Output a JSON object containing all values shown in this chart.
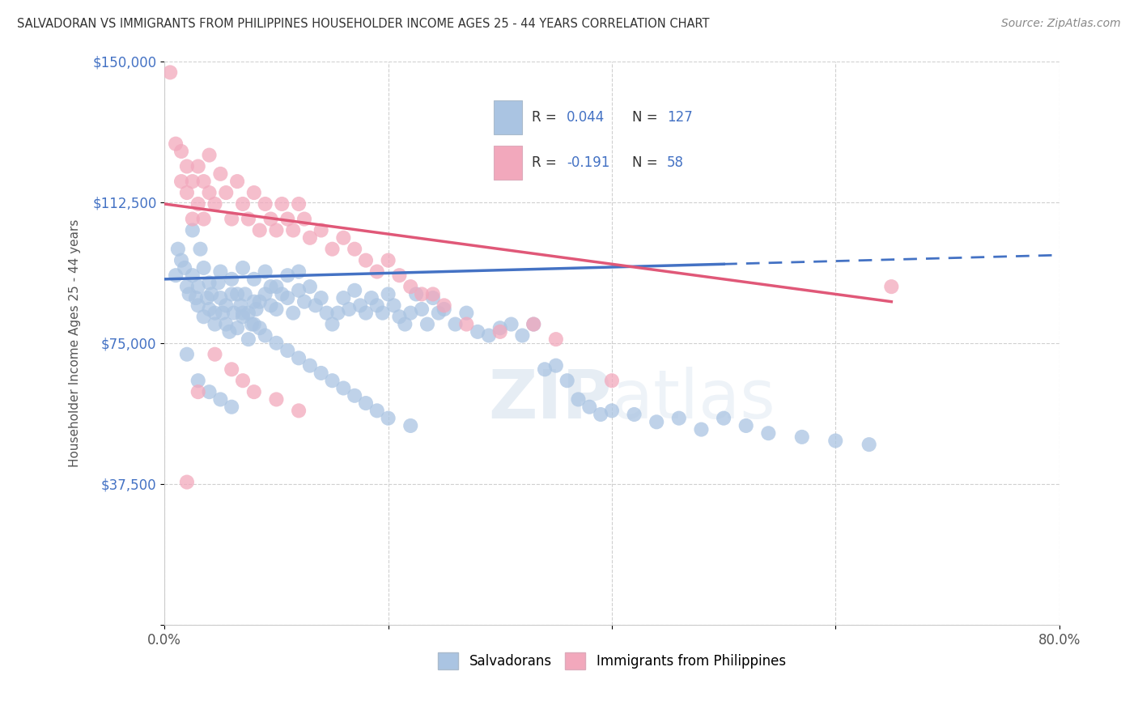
{
  "title": "SALVADORAN VS IMMIGRANTS FROM PHILIPPINES HOUSEHOLDER INCOME AGES 25 - 44 YEARS CORRELATION CHART",
  "source": "Source: ZipAtlas.com",
  "ylabel": "Householder Income Ages 25 - 44 years",
  "y_ticks": [
    0,
    37500,
    75000,
    112500,
    150000
  ],
  "y_tick_labels": [
    "",
    "$37,500",
    "$75,000",
    "$112,500",
    "$150,000"
  ],
  "x_min": 0.0,
  "x_max": 80.0,
  "y_min": 0,
  "y_max": 150000,
  "blue_color": "#aac4e2",
  "pink_color": "#f2a8bc",
  "blue_line_color": "#4472c4",
  "pink_line_color": "#e05878",
  "blue_r": 0.044,
  "blue_n": 127,
  "pink_r": -0.191,
  "pink_n": 58,
  "legend_label_blue": "Salvadorans",
  "legend_label_pink": "Immigrants from Philippines",
  "watermark_part1": "ZIP",
  "watermark_part2": "atlas",
  "blue_scatter_x": [
    1.0,
    1.2,
    1.5,
    1.8,
    2.0,
    2.2,
    2.5,
    2.5,
    2.8,
    3.0,
    3.0,
    3.2,
    3.5,
    3.5,
    3.8,
    4.0,
    4.0,
    4.2,
    4.5,
    4.5,
    4.8,
    5.0,
    5.0,
    5.2,
    5.5,
    5.5,
    5.8,
    6.0,
    6.0,
    6.2,
    6.5,
    6.5,
    6.8,
    7.0,
    7.0,
    7.2,
    7.5,
    7.5,
    7.8,
    8.0,
    8.0,
    8.2,
    8.5,
    8.5,
    9.0,
    9.0,
    9.5,
    9.5,
    10.0,
    10.0,
    10.5,
    11.0,
    11.0,
    11.5,
    12.0,
    12.0,
    12.5,
    13.0,
    13.5,
    14.0,
    14.5,
    15.0,
    15.5,
    16.0,
    16.5,
    17.0,
    17.5,
    18.0,
    18.5,
    19.0,
    19.5,
    20.0,
    20.5,
    21.0,
    21.5,
    22.0,
    22.5,
    23.0,
    23.5,
    24.0,
    24.5,
    25.0,
    26.0,
    27.0,
    28.0,
    29.0,
    30.0,
    31.0,
    32.0,
    33.0,
    34.0,
    35.0,
    36.0,
    37.0,
    38.0,
    39.0,
    40.0,
    42.0,
    44.0,
    46.0,
    48.0,
    50.0,
    52.0,
    54.0,
    57.0,
    60.0,
    63.0,
    2.0,
    3.0,
    4.0,
    5.0,
    6.0,
    7.0,
    8.0,
    9.0,
    10.0,
    11.0,
    12.0,
    13.0,
    14.0,
    15.0,
    16.0,
    17.0,
    18.0,
    19.0,
    20.0,
    22.0
  ],
  "blue_scatter_y": [
    93000,
    100000,
    97000,
    95000,
    90000,
    88000,
    93000,
    105000,
    87000,
    90000,
    85000,
    100000,
    82000,
    95000,
    87000,
    84000,
    91000,
    88000,
    83000,
    80000,
    91000,
    87000,
    94000,
    83000,
    80000,
    85000,
    78000,
    88000,
    92000,
    83000,
    79000,
    88000,
    85000,
    95000,
    82000,
    88000,
    83000,
    76000,
    80000,
    86000,
    92000,
    84000,
    79000,
    86000,
    88000,
    94000,
    85000,
    90000,
    84000,
    90000,
    88000,
    87000,
    93000,
    83000,
    89000,
    94000,
    86000,
    90000,
    85000,
    87000,
    83000,
    80000,
    83000,
    87000,
    84000,
    89000,
    85000,
    83000,
    87000,
    85000,
    83000,
    88000,
    85000,
    82000,
    80000,
    83000,
    88000,
    84000,
    80000,
    87000,
    83000,
    84000,
    80000,
    83000,
    78000,
    77000,
    79000,
    80000,
    77000,
    80000,
    68000,
    69000,
    65000,
    60000,
    58000,
    56000,
    57000,
    56000,
    54000,
    55000,
    52000,
    55000,
    53000,
    51000,
    50000,
    49000,
    48000,
    72000,
    65000,
    62000,
    60000,
    58000,
    83000,
    80000,
    77000,
    75000,
    73000,
    71000,
    69000,
    67000,
    65000,
    63000,
    61000,
    59000,
    57000,
    55000,
    53000
  ],
  "pink_scatter_x": [
    0.5,
    1.0,
    1.5,
    1.5,
    2.0,
    2.0,
    2.5,
    2.5,
    3.0,
    3.0,
    3.5,
    3.5,
    4.0,
    4.0,
    4.5,
    5.0,
    5.5,
    6.0,
    6.5,
    7.0,
    7.5,
    8.0,
    8.5,
    9.0,
    9.5,
    10.0,
    10.5,
    11.0,
    11.5,
    12.0,
    12.5,
    13.0,
    14.0,
    15.0,
    16.0,
    17.0,
    18.0,
    19.0,
    20.0,
    21.0,
    22.0,
    23.0,
    24.0,
    25.0,
    27.0,
    30.0,
    33.0,
    35.0,
    40.0,
    65.0,
    2.0,
    3.0,
    4.5,
    6.0,
    7.0,
    8.0,
    10.0,
    12.0
  ],
  "pink_scatter_y": [
    147000,
    128000,
    126000,
    118000,
    122000,
    115000,
    118000,
    108000,
    122000,
    112000,
    118000,
    108000,
    115000,
    125000,
    112000,
    120000,
    115000,
    108000,
    118000,
    112000,
    108000,
    115000,
    105000,
    112000,
    108000,
    105000,
    112000,
    108000,
    105000,
    112000,
    108000,
    103000,
    105000,
    100000,
    103000,
    100000,
    97000,
    94000,
    97000,
    93000,
    90000,
    88000,
    88000,
    85000,
    80000,
    78000,
    80000,
    76000,
    65000,
    90000,
    38000,
    62000,
    72000,
    68000,
    65000,
    62000,
    60000,
    57000
  ],
  "blue_trend_x0": 0.0,
  "blue_trend_y0": 92000,
  "blue_trend_x1": 50.0,
  "blue_trend_y1": 96000,
  "blue_dash_x0": 50.0,
  "blue_dash_y0": 96000,
  "blue_dash_x1": 80.0,
  "blue_dash_y1": 98400,
  "pink_trend_x0": 0.0,
  "pink_trend_y0": 112000,
  "pink_trend_x1": 65.0,
  "pink_trend_y1": 86000
}
